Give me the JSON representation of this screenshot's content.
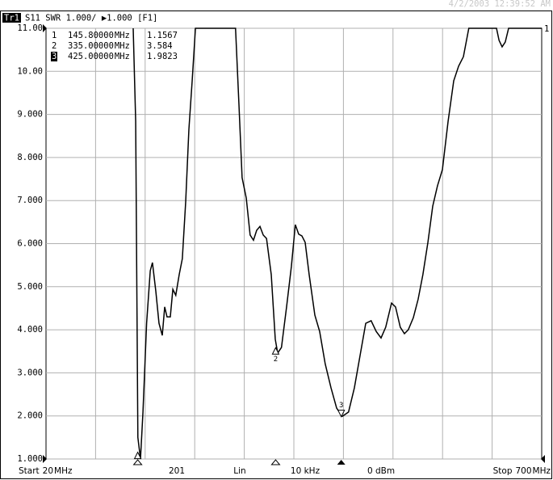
{
  "chart_data": {
    "type": "line",
    "trace_label": "Tr1",
    "header_text": "S11 SWR 1.000/ ▶1.000 [F1]",
    "timestamp": "4/2/2003 12:39:52 AM",
    "ref_marker": "1",
    "xlim": [
      20,
      700
    ],
    "x_unit": "MHz",
    "x_divisions": 10,
    "ylim": [
      1,
      11
    ],
    "yticks": [
      {
        "value": 1,
        "label": "1.000"
      },
      {
        "value": 2,
        "label": "2.000"
      },
      {
        "value": 3,
        "label": "3.000"
      },
      {
        "value": 4,
        "label": "4.000"
      },
      {
        "value": 5,
        "label": "5.000"
      },
      {
        "value": 6,
        "label": "6.000"
      },
      {
        "value": 7,
        "label": "7.000"
      },
      {
        "value": 8,
        "label": "8.000"
      },
      {
        "value": 9,
        "label": "9.000"
      },
      {
        "value": 10,
        "label": "10.00"
      },
      {
        "value": 11,
        "label": "11.00"
      }
    ],
    "grid": true,
    "series": [
      {
        "color": "#000000",
        "x": [
          139.6,
          143,
          146,
          149.6,
          153,
          158,
          163,
          166,
          170.6,
          175,
          179.5,
          182.8,
          186,
          190.5,
          194,
          198,
          202.7,
          207,
          211.6,
          216,
          220.5,
          225,
          280,
          284.7,
          289,
          294.7,
          300,
          304.6,
          309,
          313.5,
          318,
          322.5,
          329,
          334.5,
          337.8,
          343,
          350,
          356.6,
          362,
          366.6,
          371,
          375.5,
          381,
          388.8,
          395.4,
          403,
          411,
          418.7,
          426.5,
          435,
          443,
          450.8,
          458.6,
          466,
          473,
          479.6,
          486,
          494,
          499.5,
          506,
          511.7,
          517,
          523.9,
          530.5,
          537,
          543.9,
          550.5,
          557,
          563.8,
          571.6,
          579.3,
          586,
          592.6,
          600,
          638,
          641.5,
          645.7,
          650,
          654.6,
          700
        ],
        "values": [
          11,
          8.84,
          1.5,
          1,
          2.09,
          4.15,
          5.37,
          5.56,
          4.9,
          4.15,
          3.87,
          4.53,
          4.3,
          4.3,
          4.94,
          4.8,
          5.28,
          5.65,
          6.97,
          8.65,
          9.78,
          11,
          11,
          9.22,
          7.53,
          7.06,
          6.2,
          6.08,
          6.31,
          6.4,
          6.2,
          6.12,
          5.28,
          3.78,
          3.46,
          3.59,
          4.53,
          5.47,
          6.44,
          6.22,
          6.18,
          6.03,
          5.28,
          4.34,
          3.96,
          3.21,
          2.65,
          2.18,
          1.99,
          2.09,
          2.65,
          3.4,
          4.15,
          4.21,
          3.96,
          3.81,
          4.06,
          4.62,
          4.53,
          4.06,
          3.91,
          4,
          4.28,
          4.71,
          5.28,
          6.03,
          6.87,
          7.34,
          7.72,
          8.84,
          9.78,
          10.12,
          10.34,
          11,
          11,
          10.72,
          10.57,
          10.68,
          11,
          11
        ]
      }
    ],
    "active_marker": "3",
    "markers": [
      {
        "id": "1",
        "frequency": {
          "value": 145.8,
          "label": "145.80000"
        },
        "unit": "MHz",
        "swr": 1.1567
      },
      {
        "id": "2",
        "frequency": {
          "value": 335,
          "label": "335.00000"
        },
        "unit": "MHz",
        "swr": 3.584
      },
      {
        "id": "3",
        "frequency": {
          "value": 425,
          "label": "425.00000"
        },
        "unit": "MHz",
        "swr": 1.9823
      }
    ],
    "start_label": "Start",
    "stop_label": "Stop",
    "footer": [
      "201",
      "Lin",
      "10 kHz",
      "0 dBm"
    ]
  }
}
